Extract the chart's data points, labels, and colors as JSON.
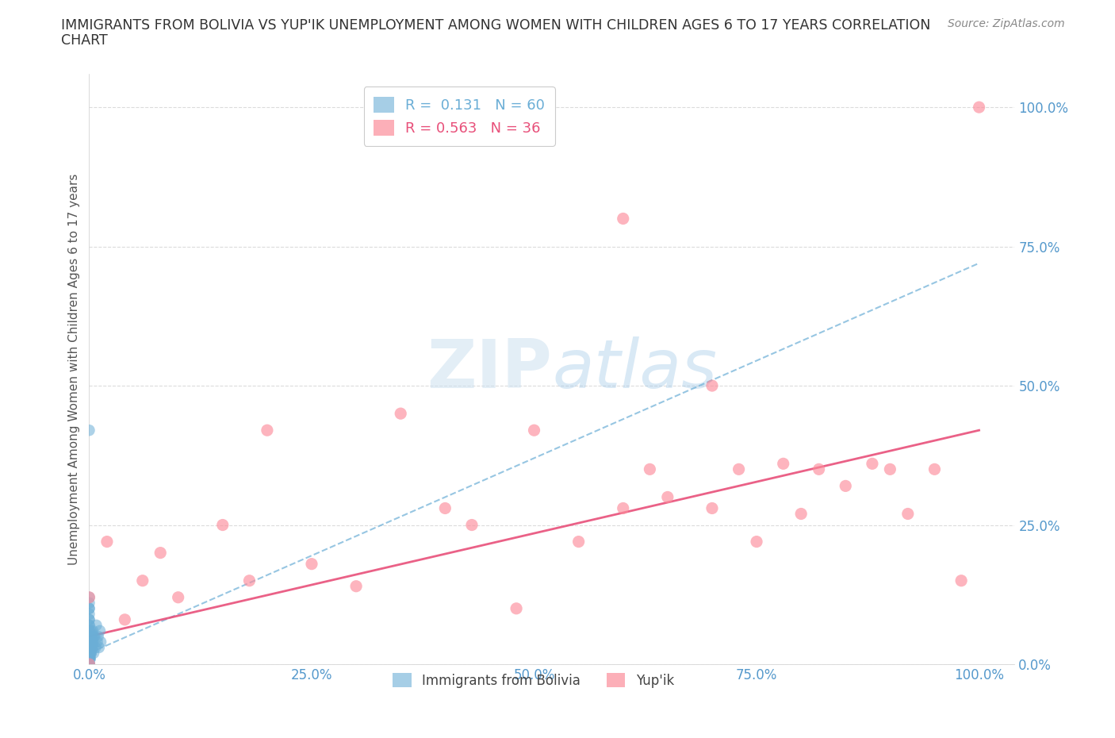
{
  "title_line1": "IMMIGRANTS FROM BOLIVIA VS YUP'IK UNEMPLOYMENT AMONG WOMEN WITH CHILDREN AGES 6 TO 17 YEARS CORRELATION",
  "title_line2": "CHART",
  "source": "Source: ZipAtlas.com",
  "ylabel_label": "Unemployment Among Women with Children Ages 6 to 17 years",
  "legend_entry1": "R =  0.131   N = 60",
  "legend_entry2": "R = 0.563   N = 36",
  "legend_label1": "Immigrants from Bolivia",
  "legend_label2": "Yup'ik",
  "bolivia_color": "#6baed6",
  "yupik_color": "#fc8d9b",
  "yupik_line_color": "#e8507a",
  "bolivia_line_color": "#6baed6",
  "tick_color": "#5599cc",
  "grid_color": "#cccccc",
  "background_color": "#ffffff",
  "title_color": "#333333",
  "bolivia_x": [
    0.0,
    0.0,
    0.0,
    0.0,
    0.0,
    0.0,
    0.0,
    0.0,
    0.0,
    0.0,
    0.0,
    0.0,
    0.0,
    0.0,
    0.0,
    0.0,
    0.0,
    0.0,
    0.0,
    0.0,
    0.0,
    0.0,
    0.0,
    0.0,
    0.0,
    0.0,
    0.0,
    0.0,
    0.0,
    0.0,
    0.001,
    0.001,
    0.001,
    0.001,
    0.002,
    0.002,
    0.002,
    0.002,
    0.003,
    0.003,
    0.004,
    0.004,
    0.005,
    0.005,
    0.006,
    0.007,
    0.008,
    0.009,
    0.01,
    0.011,
    0.012,
    0.013,
    0.001,
    0.002,
    0.003,
    0.004,
    0.001,
    0.002,
    0.001,
    0.0
  ],
  "bolivia_y": [
    0.0,
    0.0,
    0.0,
    0.01,
    0.01,
    0.02,
    0.02,
    0.03,
    0.03,
    0.04,
    0.04,
    0.05,
    0.05,
    0.06,
    0.06,
    0.07,
    0.07,
    0.08,
    0.08,
    0.09,
    0.1,
    0.1,
    0.11,
    0.12,
    0.0,
    0.01,
    0.02,
    0.03,
    0.04,
    0.0,
    0.02,
    0.03,
    0.04,
    0.05,
    0.03,
    0.04,
    0.05,
    0.06,
    0.04,
    0.05,
    0.04,
    0.06,
    0.02,
    0.05,
    0.05,
    0.03,
    0.07,
    0.04,
    0.05,
    0.03,
    0.06,
    0.04,
    0.02,
    0.02,
    0.03,
    0.03,
    0.01,
    0.02,
    0.01,
    0.42
  ],
  "yupik_x": [
    0.0,
    0.0,
    0.02,
    0.04,
    0.06,
    0.08,
    0.1,
    0.15,
    0.18,
    0.2,
    0.25,
    0.3,
    0.35,
    0.4,
    0.43,
    0.48,
    0.5,
    0.55,
    0.6,
    0.63,
    0.65,
    0.7,
    0.73,
    0.75,
    0.78,
    0.8,
    0.82,
    0.85,
    0.88,
    0.9,
    0.92,
    0.95,
    0.98,
    1.0,
    0.6,
    0.7
  ],
  "yupik_y": [
    0.0,
    0.12,
    0.22,
    0.08,
    0.15,
    0.2,
    0.12,
    0.25,
    0.15,
    0.42,
    0.18,
    0.14,
    0.45,
    0.28,
    0.25,
    0.1,
    0.42,
    0.22,
    0.28,
    0.35,
    0.3,
    0.28,
    0.35,
    0.22,
    0.36,
    0.27,
    0.35,
    0.32,
    0.36,
    0.35,
    0.27,
    0.35,
    0.15,
    1.0,
    0.8,
    0.5
  ],
  "bolivia_trend_y0": 0.02,
  "bolivia_trend_y1": 0.72,
  "yupik_trend_y0": 0.05,
  "yupik_trend_y1": 0.42,
  "xlim": [
    0.0,
    1.04
  ],
  "ylim": [
    0.0,
    1.06
  ],
  "xticks": [
    0.0,
    0.25,
    0.5,
    0.75,
    1.0
  ],
  "yticks": [
    0.0,
    0.25,
    0.5,
    0.75,
    1.0
  ],
  "xtick_labels": [
    "0.0%",
    "25.0%",
    "50.0%",
    "75.0%",
    "100.0%"
  ],
  "ytick_labels": [
    "0.0%",
    "25.0%",
    "50.0%",
    "75.0%",
    "100.0%"
  ]
}
